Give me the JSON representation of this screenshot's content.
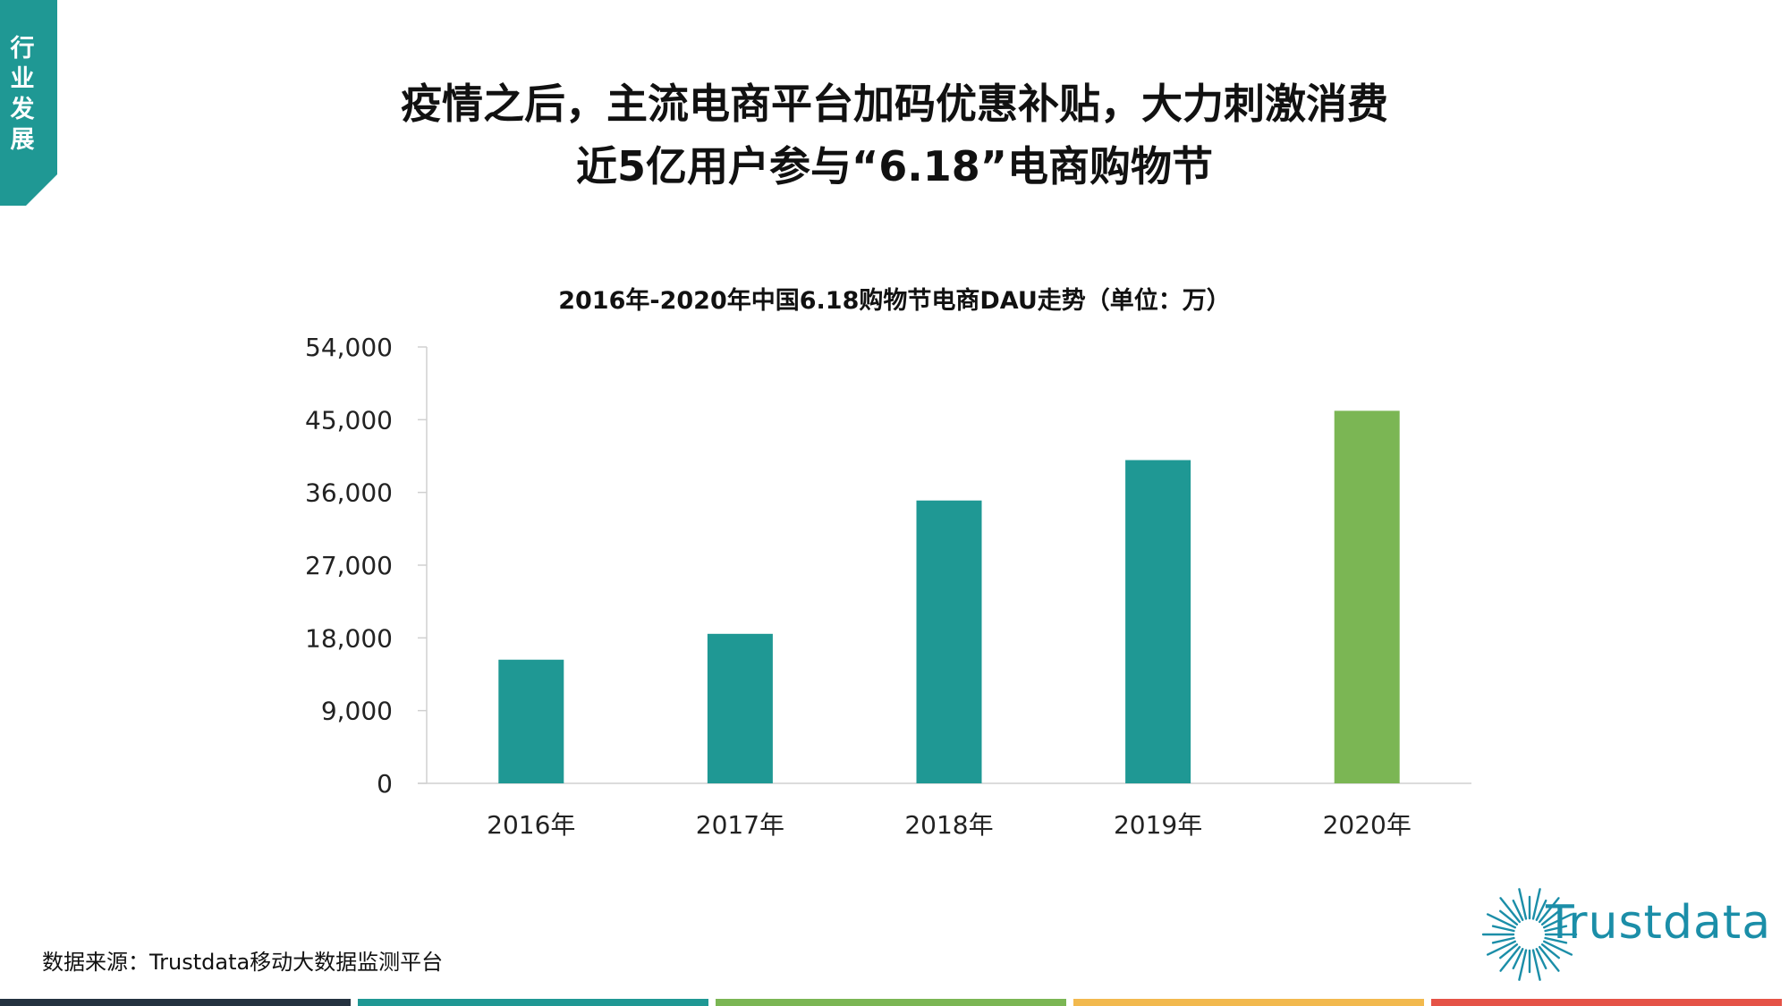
{
  "side_tab": {
    "label": "行业发展"
  },
  "headline": {
    "line1": "疫情之后，主流电商平台加码优惠补贴，大力刺激消费",
    "line2": "近5亿用户参与“6.18”电商购物节"
  },
  "chart_data": {
    "type": "bar",
    "title": "2016年-2020年中国6.18购物节电商DAU走势（单位：万）",
    "categories": [
      "2016年",
      "2017年",
      "2018年",
      "2019年",
      "2020年"
    ],
    "values": [
      15300,
      18500,
      35000,
      40000,
      46100
    ],
    "ylim": [
      0,
      54000
    ],
    "yticks": [
      0,
      9000,
      18000,
      27000,
      36000,
      45000,
      54000
    ],
    "ytick_labels": [
      "0",
      "9,000",
      "18,000",
      "27,000",
      "36,000",
      "45,000",
      "54,000"
    ],
    "bar_colors": [
      "#1f9894",
      "#1f9894",
      "#1f9894",
      "#1f9894",
      "#7bb654"
    ],
    "grid": false,
    "xlabel": "",
    "ylabel": ""
  },
  "source": "数据来源：Trustdata移动大数据监测平台",
  "logo": {
    "text": "Trustdata",
    "color": "#1b8ea8"
  },
  "footer_colors": [
    "#243240",
    "#1f9894",
    "#7bb654",
    "#f2b94e",
    "#e55347"
  ]
}
